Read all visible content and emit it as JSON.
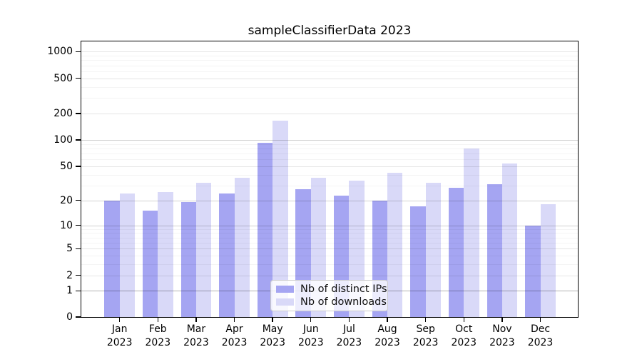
{
  "chart_data": {
    "type": "bar",
    "title": "sampleClassifierData 2023",
    "categories": [
      "Jan",
      "Feb",
      "Mar",
      "Apr",
      "May",
      "Jun",
      "Jul",
      "Aug",
      "Sep",
      "Oct",
      "Nov",
      "Dec"
    ],
    "x_year_label": "2023",
    "series": [
      {
        "name": "Nb of distinct IPs",
        "color": "#a5a5f2",
        "values": [
          20,
          15,
          19,
          24,
          93,
          27,
          23,
          20,
          17,
          28,
          31,
          10
        ]
      },
      {
        "name": "Nb of downloads",
        "color": "#d9d9f8",
        "values": [
          24,
          25,
          32,
          37,
          165,
          37,
          34,
          42,
          32,
          80,
          54,
          18
        ]
      }
    ],
    "yticks": [
      0,
      1,
      2,
      5,
      10,
      20,
      50,
      100,
      200,
      500,
      1000
    ],
    "yscale": "symlog",
    "ylim": [
      0,
      1300
    ],
    "xlabel": "",
    "ylabel": "",
    "grid": true,
    "legend_position": "lower center"
  }
}
